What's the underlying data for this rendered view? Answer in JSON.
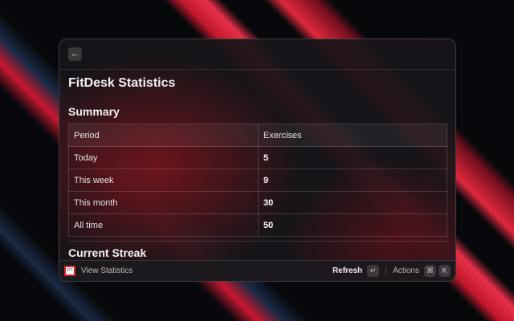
{
  "header": {
    "back_icon": "arrow-left-icon"
  },
  "title": "FitDesk Statistics",
  "summary": {
    "heading": "Summary",
    "columns": [
      "Period",
      "Exercises"
    ],
    "rows": [
      {
        "period": "Today",
        "exercises": "5"
      },
      {
        "period": "This week",
        "exercises": "9"
      },
      {
        "period": "This month",
        "exercises": "30"
      },
      {
        "period": "All time",
        "exercises": "50"
      }
    ]
  },
  "streak": {
    "heading": "Current Streak"
  },
  "footer": {
    "command": "View Statistics",
    "primary_action": "Refresh",
    "primary_key": "↵",
    "actions_label": "Actions",
    "actions_keys": [
      "⌘",
      "K"
    ]
  },
  "colors": {
    "accent": "#d92b3a"
  }
}
